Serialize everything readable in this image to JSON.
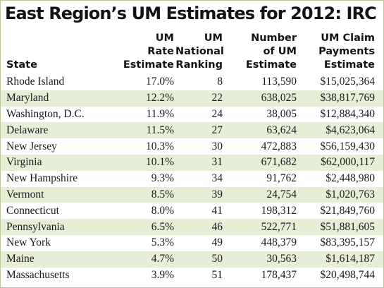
{
  "title": "East Region’s UM Estimates for 2012: IRC",
  "headers": {
    "state": [
      "State"
    ],
    "rate": [
      "UM",
      "Rate",
      "Estimate"
    ],
    "rank": [
      "UM",
      "National",
      "Ranking"
    ],
    "number": [
      "Number",
      "of UM",
      "Estimate"
    ],
    "payments": [
      "UM Claim",
      "Payments",
      "Estimate"
    ]
  },
  "rows": [
    {
      "state": "Rhode Island",
      "rate": "17.0%",
      "rank": "8",
      "number": "113,590",
      "payments": "$15,025,364"
    },
    {
      "state": "Maryland",
      "rate": "12.2%",
      "rank": "22",
      "number": "638,025",
      "payments": "$38,817,769"
    },
    {
      "state": "Washington, D.C.",
      "rate": "11.9%",
      "rank": "24",
      "number": "38,005",
      "payments": "$12,884,340"
    },
    {
      "state": "Delaware",
      "rate": "11.5%",
      "rank": "27",
      "number": "63,624",
      "payments": "$4,623,064"
    },
    {
      "state": "New Jersey",
      "rate": "10.3%",
      "rank": "30",
      "number": "472,883",
      "payments": "$56,159,430"
    },
    {
      "state": "Virginia",
      "rate": "10.1%",
      "rank": "31",
      "number": "671,682",
      "payments": "$62,000,117"
    },
    {
      "state": "New Hampshire",
      "rate": "9.3%",
      "rank": "34",
      "number": "91,762",
      "payments": "$2,448,980"
    },
    {
      "state": "Vermont",
      "rate": "8.5%",
      "rank": "39",
      "number": "24,754",
      "payments": "$1,020,763"
    },
    {
      "state": "Connecticut",
      "rate": "8.0%",
      "rank": "41",
      "number": "198,312",
      "payments": "$21,849,760"
    },
    {
      "state": "Pennsylvania",
      "rate": "6.5%",
      "rank": "46",
      "number": "522,771",
      "payments": "$51,881,605"
    },
    {
      "state": "New York",
      "rate": "5.3%",
      "rank": "49",
      "number": "448,379",
      "payments": "$83,395,157"
    },
    {
      "state": "Maine",
      "rate": "4.7%",
      "rank": "50",
      "number": "30,563",
      "payments": "$1,614,187"
    },
    {
      "state": "Massachusetts",
      "rate": "3.9%",
      "rank": "51",
      "number": "178,437",
      "payments": "$20,498,744"
    }
  ],
  "colors": {
    "band": "#e6eed6",
    "border": "#b9c99a",
    "text": "#141414"
  }
}
